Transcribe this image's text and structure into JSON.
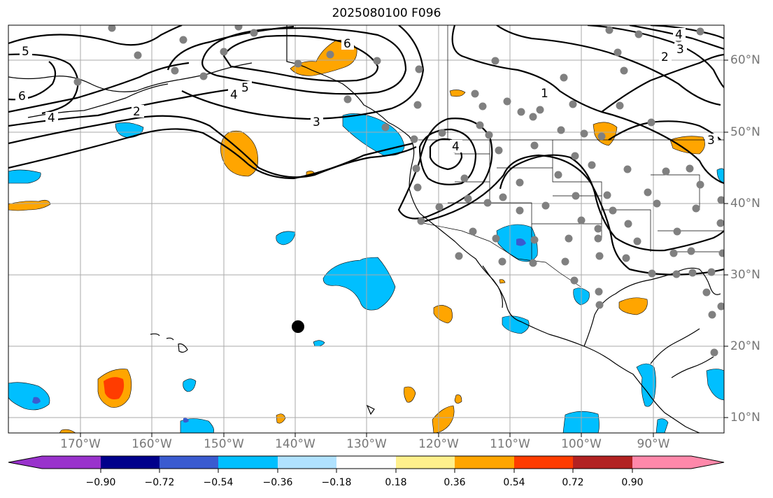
{
  "title": "2025080100 F096",
  "lon_labels": [
    "170°W",
    "160°W",
    "150°W",
    "140°W",
    "130°W",
    "120°W",
    "110°W",
    "100°W",
    "90°W"
  ],
  "lat_labels": [
    "60°N",
    "50°N",
    "40°N",
    "30°N",
    "20°N",
    "10°N"
  ],
  "contour_labels": [
    "5",
    "6",
    "4",
    "2",
    "3",
    "4",
    "5",
    "6",
    "1",
    "3",
    "2",
    "3",
    "4",
    "4"
  ],
  "colorbar": {
    "ticks": [
      "−0.90",
      "−0.72",
      "−0.54",
      "−0.36",
      "−0.18",
      "0.18",
      "0.36",
      "0.54",
      "0.72",
      "0.90"
    ],
    "colors": [
      "#9932cc",
      "#00008b",
      "#3a5bd0",
      "#00bfff",
      "#b0e2ff",
      "#ffffff",
      "#fff08c",
      "#ffa500",
      "#ff3c00",
      "#b22222",
      "#ff88aa"
    ]
  }
}
